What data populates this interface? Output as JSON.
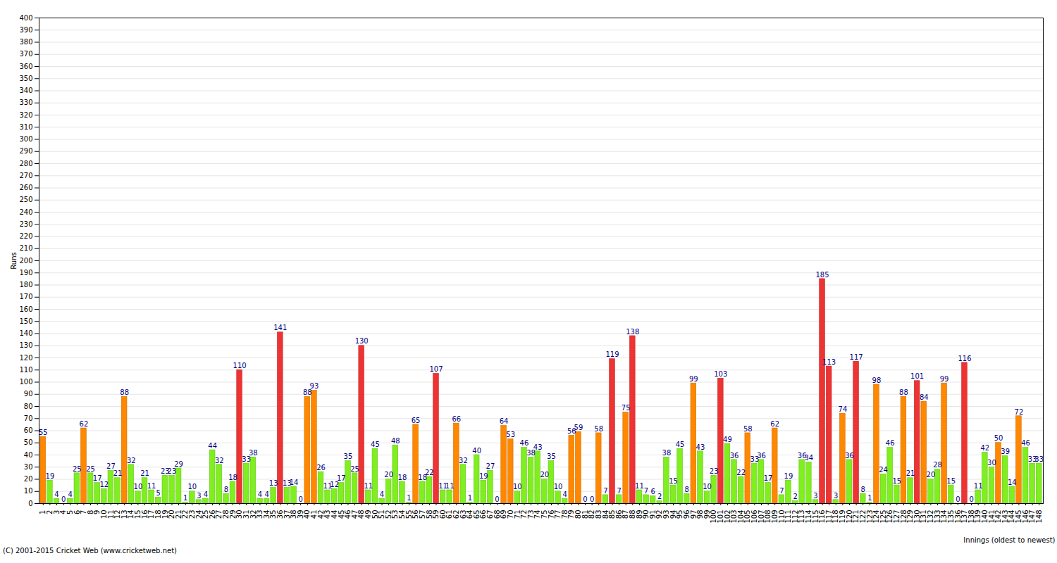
{
  "chart_data": {
    "type": "bar",
    "x_label": "Innings (oldest to newest)",
    "y_label": "Runs",
    "caption": "(C) 2001-2015 Cricket Web (www.cricketweb.net)",
    "categories": [
      "1",
      "2",
      "3",
      "4",
      "5",
      "6",
      "7",
      "8",
      "9",
      "10",
      "11",
      "12",
      "13",
      "14",
      "15",
      "16",
      "17",
      "18",
      "19",
      "20",
      "21",
      "22",
      "23",
      "24",
      "25",
      "26",
      "27",
      "28",
      "29",
      "30",
      "31",
      "32",
      "33",
      "34",
      "35",
      "36",
      "37",
      "38",
      "39",
      "40",
      "41",
      "42",
      "43",
      "44",
      "45",
      "46",
      "47",
      "48",
      "49",
      "50",
      "51",
      "52",
      "53",
      "54",
      "55",
      "56",
      "57",
      "58",
      "59",
      "60",
      "61",
      "62",
      "63",
      "64",
      "65",
      "66",
      "67",
      "68",
      "69",
      "70",
      "71",
      "72",
      "73",
      "74",
      "75",
      "76",
      "77",
      "78",
      "79",
      "80",
      "81",
      "82",
      "83",
      "84",
      "85",
      "86",
      "87",
      "88",
      "89",
      "90",
      "91",
      "92",
      "93",
      "94",
      "95",
      "96",
      "97",
      "98",
      "99",
      "100",
      "101",
      "102",
      "103",
      "104",
      "105",
      "106",
      "107",
      "108",
      "109",
      "110",
      "111",
      "112",
      "113",
      "114",
      "115",
      "116",
      "117",
      "118",
      "119",
      "120",
      "121",
      "122",
      "123",
      "124",
      "125",
      "126",
      "127",
      "128",
      "129",
      "130",
      "131",
      "132",
      "133",
      "134",
      "135",
      "136",
      "137",
      "138",
      "139",
      "140",
      "141",
      "142",
      "143",
      "144",
      "145",
      "146",
      "147",
      "148"
    ],
    "values": [
      55,
      19,
      4,
      0,
      4,
      25,
      62,
      25,
      17,
      12,
      27,
      21,
      88,
      32,
      10,
      21,
      11,
      5,
      23,
      23,
      29,
      1,
      10,
      3,
      4,
      44,
      32,
      8,
      18,
      110,
      33,
      38,
      4,
      4,
      13,
      141,
      13,
      14,
      0,
      88,
      93,
      26,
      11,
      12,
      17,
      35,
      25,
      130,
      11,
      45,
      4,
      20,
      48,
      18,
      1,
      65,
      18,
      22,
      107,
      11,
      11,
      66,
      32,
      1,
      40,
      19,
      27,
      0,
      64,
      53,
      10,
      46,
      38,
      43,
      20,
      35,
      10,
      4,
      56,
      59,
      0,
      0,
      58,
      7,
      119,
      7,
      75,
      138,
      11,
      7,
      6,
      2,
      38,
      15,
      45,
      8,
      99,
      43,
      10,
      23,
      103,
      49,
      36,
      22,
      58,
      33,
      36,
      17,
      62,
      7,
      19,
      2,
      36,
      34,
      3,
      185,
      113,
      3,
      74,
      36,
      117,
      8,
      1,
      98,
      24,
      46,
      15,
      88,
      21,
      101,
      84,
      20,
      28,
      99,
      15,
      0,
      116,
      0,
      11,
      42,
      30,
      50,
      39,
      14,
      72,
      46,
      33,
      33
    ],
    "colors": [
      "#ff8800",
      "#7fef1f",
      "#7fef1f",
      "#7fef1f",
      "#7fef1f",
      "#7fef1f",
      "#ff8800",
      "#7fef1f",
      "#7fef1f",
      "#7fef1f",
      "#7fef1f",
      "#7fef1f",
      "#ff8800",
      "#7fef1f",
      "#7fef1f",
      "#7fef1f",
      "#7fef1f",
      "#7fef1f",
      "#7fef1f",
      "#7fef1f",
      "#7fef1f",
      "#7fef1f",
      "#7fef1f",
      "#7fef1f",
      "#7fef1f",
      "#7fef1f",
      "#7fef1f",
      "#7fef1f",
      "#7fef1f",
      "#ee3333",
      "#7fef1f",
      "#7fef1f",
      "#7fef1f",
      "#7fef1f",
      "#7fef1f",
      "#ee3333",
      "#7fef1f",
      "#7fef1f",
      "#7fef1f",
      "#ff8800",
      "#ff8800",
      "#7fef1f",
      "#7fef1f",
      "#7fef1f",
      "#7fef1f",
      "#7fef1f",
      "#7fef1f",
      "#ee3333",
      "#7fef1f",
      "#7fef1f",
      "#7fef1f",
      "#7fef1f",
      "#7fef1f",
      "#7fef1f",
      "#7fef1f",
      "#ff8800",
      "#7fef1f",
      "#7fef1f",
      "#ee3333",
      "#7fef1f",
      "#7fef1f",
      "#ff8800",
      "#7fef1f",
      "#7fef1f",
      "#7fef1f",
      "#7fef1f",
      "#7fef1f",
      "#7fef1f",
      "#ff8800",
      "#ff8800",
      "#7fef1f",
      "#7fef1f",
      "#7fef1f",
      "#7fef1f",
      "#7fef1f",
      "#7fef1f",
      "#7fef1f",
      "#7fef1f",
      "#ff8800",
      "#ff8800",
      "#7fef1f",
      "#7fef1f",
      "#ff8800",
      "#7fef1f",
      "#ee3333",
      "#7fef1f",
      "#ff8800",
      "#ee3333",
      "#7fef1f",
      "#7fef1f",
      "#7fef1f",
      "#7fef1f",
      "#7fef1f",
      "#7fef1f",
      "#7fef1f",
      "#7fef1f",
      "#ff8800",
      "#7fef1f",
      "#7fef1f",
      "#7fef1f",
      "#ee3333",
      "#7fef1f",
      "#7fef1f",
      "#7fef1f",
      "#ff8800",
      "#7fef1f",
      "#7fef1f",
      "#7fef1f",
      "#ff8800",
      "#7fef1f",
      "#7fef1f",
      "#7fef1f",
      "#7fef1f",
      "#7fef1f",
      "#7fef1f",
      "#ee3333",
      "#ee3333",
      "#7fef1f",
      "#ff8800",
      "#7fef1f",
      "#ee3333",
      "#7fef1f",
      "#7fef1f",
      "#ff8800",
      "#7fef1f",
      "#7fef1f",
      "#7fef1f",
      "#ff8800",
      "#7fef1f",
      "#ee3333",
      "#ff8800",
      "#7fef1f",
      "#7fef1f",
      "#ff8800",
      "#7fef1f",
      "#7fef1f",
      "#ee3333",
      "#7fef1f",
      "#7fef1f",
      "#7fef1f",
      "#7fef1f",
      "#ff8800",
      "#7fef1f",
      "#7fef1f",
      "#ff8800",
      "#7fef1f",
      "#7fef1f",
      "#7fef1f"
    ],
    "ylim": [
      0,
      400
    ],
    "yticks": [
      0,
      10,
      20,
      30,
      40,
      50,
      60,
      70,
      80,
      90,
      100,
      110,
      120,
      130,
      140,
      150,
      160,
      170,
      180,
      190,
      200,
      210,
      220,
      230,
      240,
      250,
      260,
      270,
      280,
      290,
      300,
      310,
      320,
      330,
      340,
      350,
      360,
      370,
      380,
      390,
      400
    ],
    "grid": true,
    "data_labels": true
  }
}
